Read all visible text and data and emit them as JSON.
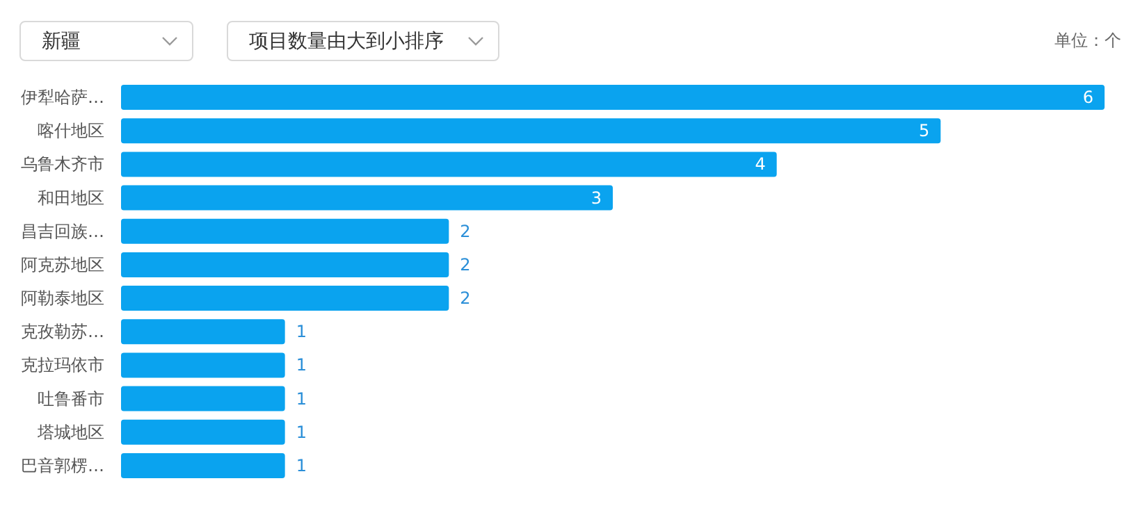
{
  "chart_data": {
    "type": "bar",
    "orientation": "horizontal",
    "categories": [
      "伊犁哈萨…",
      "喀什地区",
      "乌鲁木齐市",
      "和田地区",
      "昌吉回族…",
      "阿克苏地区",
      "阿勒泰地区",
      "克孜勒苏…",
      "克拉玛依市",
      "吐鲁番市",
      "塔城地区",
      "巴音郭楞…"
    ],
    "values": [
      6,
      5,
      4,
      3,
      2,
      2,
      2,
      1,
      1,
      1,
      1,
      1
    ],
    "color": "#0aa3ef",
    "data_labels": true,
    "annotations": [
      "新疆",
      "项目数量由大到小排序",
      "单位：个"
    ]
  }
}
